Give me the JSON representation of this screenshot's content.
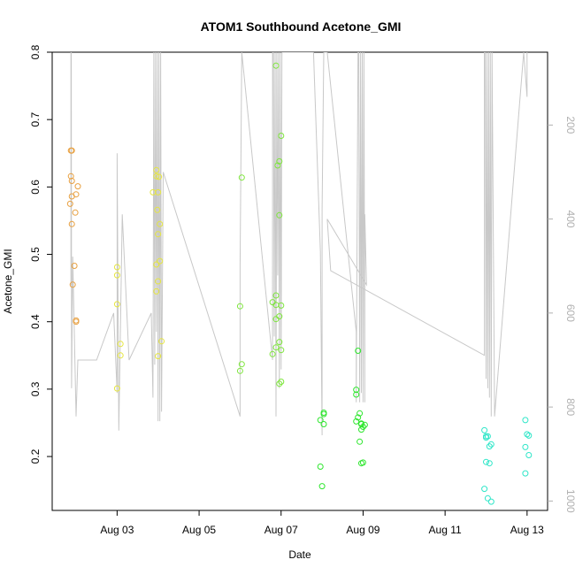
{
  "chart_data": {
    "type": "scatter",
    "title": "ATOM1 Southbound Acetone_GMI",
    "xlabel": "Date",
    "ylabel": "Acetone_GMI",
    "x_range": [
      "2016-08-01T10:00",
      "2016-08-13T12:00"
    ],
    "ylim": [
      0.12,
      0.8
    ],
    "y_ticks": [
      0.2,
      0.3,
      0.4,
      0.5,
      0.6,
      0.7,
      0.8
    ],
    "x_ticks": [
      {
        "date": "2016-08-03",
        "label": "Aug 03"
      },
      {
        "date": "2016-08-05",
        "label": "Aug 05"
      },
      {
        "date": "2016-08-07",
        "label": "Aug 07"
      },
      {
        "date": "2016-08-09",
        "label": "Aug 09"
      },
      {
        "date": "2016-08-11",
        "label": "Aug 11"
      },
      {
        "date": "2016-08-13",
        "label": "Aug 13"
      }
    ],
    "right_axis": {
      "reversed": true,
      "lim": [
        45,
        1020
      ],
      "ticks": [
        200,
        400,
        600,
        800,
        1000
      ],
      "color": "#b0b0b0"
    },
    "grid": false,
    "series": [
      {
        "color": "#e8a040",
        "points": [
          [
            "2016-08-01T21:00",
            0.654
          ],
          [
            "2016-08-01T21:30",
            0.654
          ],
          [
            "2016-08-01T21:00",
            0.616
          ],
          [
            "2016-08-01T21:30",
            0.609
          ],
          [
            "2016-08-02T01:00",
            0.601
          ],
          [
            "2016-08-02T00:00",
            0.589
          ],
          [
            "2016-08-01T21:30",
            0.586
          ],
          [
            "2016-08-01T20:30",
            0.575
          ],
          [
            "2016-08-01T23:30",
            0.562
          ],
          [
            "2016-08-01T21:30",
            0.545
          ],
          [
            "2016-08-01T23:00",
            0.483
          ],
          [
            "2016-08-01T22:00",
            0.455
          ],
          [
            "2016-08-02T00:00",
            0.402
          ],
          [
            "2016-08-02T00:00",
            0.4
          ]
        ]
      },
      {
        "color": "#e6e640",
        "points": [
          [
            "2016-08-03T00:00",
            0.481
          ],
          [
            "2016-08-03T00:00",
            0.469
          ],
          [
            "2016-08-03T00:00",
            0.426
          ],
          [
            "2016-08-03T02:00",
            0.367
          ],
          [
            "2016-08-03T02:00",
            0.35
          ],
          [
            "2016-08-03T00:00",
            0.301
          ],
          [
            "2016-08-03T23:00",
            0.625
          ],
          [
            "2016-08-03T23:00",
            0.616
          ],
          [
            "2016-08-04T00:30",
            0.615
          ],
          [
            "2016-08-03T21:00",
            0.592
          ],
          [
            "2016-08-04T00:00",
            0.592
          ],
          [
            "2016-08-03T23:30",
            0.566
          ],
          [
            "2016-08-04T01:00",
            0.545
          ],
          [
            "2016-08-04T00:00",
            0.53
          ],
          [
            "2016-08-04T01:00",
            0.49
          ],
          [
            "2016-08-03T23:00",
            0.485
          ],
          [
            "2016-08-04T00:00",
            0.46
          ],
          [
            "2016-08-03T23:00",
            0.445
          ],
          [
            "2016-08-04T02:00",
            0.371
          ],
          [
            "2016-08-04T00:00",
            0.349
          ]
        ]
      },
      {
        "color": "#7ee63c",
        "points": [
          [
            "2016-08-06T01:00",
            0.614
          ],
          [
            "2016-08-06T00:00",
            0.423
          ],
          [
            "2016-08-06T01:00",
            0.337
          ],
          [
            "2016-08-06T00:00",
            0.327
          ],
          [
            "2016-08-06T21:00",
            0.78
          ],
          [
            "2016-08-07T00:00",
            0.676
          ],
          [
            "2016-08-06T23:00",
            0.638
          ],
          [
            "2016-08-06T22:00",
            0.632
          ],
          [
            "2016-08-06T23:00",
            0.558
          ],
          [
            "2016-08-06T21:00",
            0.439
          ],
          [
            "2016-08-06T19:00",
            0.429
          ],
          [
            "2016-08-06T21:00",
            0.425
          ],
          [
            "2016-08-07T00:00",
            0.424
          ],
          [
            "2016-08-06T23:00",
            0.408
          ],
          [
            "2016-08-06T21:00",
            0.404
          ],
          [
            "2016-08-06T23:00",
            0.37
          ],
          [
            "2016-08-06T21:00",
            0.362
          ],
          [
            "2016-08-07T00:00",
            0.358
          ],
          [
            "2016-08-06T19:00",
            0.352
          ],
          [
            "2016-08-07T00:00",
            0.311
          ],
          [
            "2016-08-06T23:00",
            0.308
          ]
        ]
      },
      {
        "color": "#2ee62e",
        "points": [
          [
            "2016-08-08T01:00",
            0.265
          ],
          [
            "2016-08-08T01:00",
            0.263
          ],
          [
            "2016-08-07T23:00",
            0.254
          ],
          [
            "2016-08-08T01:00",
            0.248
          ],
          [
            "2016-08-07T23:00",
            0.185
          ],
          [
            "2016-08-08T00:00",
            0.156
          ],
          [
            "2016-08-08T21:00",
            0.357
          ],
          [
            "2016-08-08T20:00",
            0.299
          ],
          [
            "2016-08-08T20:00",
            0.292
          ],
          [
            "2016-08-08T22:00",
            0.264
          ],
          [
            "2016-08-08T21:00",
            0.258
          ],
          [
            "2016-08-08T20:00",
            0.252
          ],
          [
            "2016-08-08T23:00",
            0.249
          ],
          [
            "2016-08-08T23:00",
            0.248
          ],
          [
            "2016-08-09T01:00",
            0.247
          ],
          [
            "2016-08-09T00:00",
            0.244
          ],
          [
            "2016-08-08T23:00",
            0.24
          ],
          [
            "2016-08-08T22:00",
            0.222
          ],
          [
            "2016-08-09T00:00",
            0.191
          ],
          [
            "2016-08-08T23:00",
            0.19
          ]
        ]
      },
      {
        "color": "#2ee6c8",
        "points": [
          [
            "2016-08-11T23:00",
            0.239
          ],
          [
            "2016-08-12T00:00",
            0.23
          ],
          [
            "2016-08-12T01:00",
            0.23
          ],
          [
            "2016-08-12T00:00",
            0.228
          ],
          [
            "2016-08-12T03:00",
            0.218
          ],
          [
            "2016-08-12T02:00",
            0.215
          ],
          [
            "2016-08-12T00:00",
            0.192
          ],
          [
            "2016-08-12T02:00",
            0.19
          ],
          [
            "2016-08-11T23:00",
            0.152
          ],
          [
            "2016-08-12T01:00",
            0.138
          ],
          [
            "2016-08-12T03:00",
            0.133
          ],
          [
            "2016-08-12T23:00",
            0.254
          ],
          [
            "2016-08-13T00:00",
            0.233
          ],
          [
            "2016-08-13T01:00",
            0.231
          ],
          [
            "2016-08-12T23:00",
            0.214
          ],
          [
            "2016-08-13T01:00",
            0.202
          ],
          [
            "2016-08-12T23:00",
            0.175
          ]
        ]
      }
    ],
    "altitude_line": {
      "color": "#c8c8c8",
      "points": [
        [
          "2016-08-01T21:00",
          45
        ],
        [
          "2016-08-01T21:00",
          540
        ],
        [
          "2016-08-01T21:10",
          45
        ],
        [
          "2016-08-01T21:20",
          760
        ],
        [
          "2016-08-01T22:00",
          480
        ],
        [
          "2016-08-02T00:00",
          820
        ],
        [
          "2016-08-02T01:00",
          700
        ],
        [
          "2016-08-02T12:00",
          700
        ],
        [
          "2016-08-02T22:00",
          600
        ],
        [
          "2016-08-03T00:00",
          770
        ],
        [
          "2016-08-03T00:00",
          260
        ],
        [
          "2016-08-03T01:00",
          850
        ],
        [
          "2016-08-03T03:00",
          390
        ],
        [
          "2016-08-03T07:00",
          700
        ],
        [
          "2016-08-03T20:00",
          600
        ],
        [
          "2016-08-03T21:00",
          780
        ],
        [
          "2016-08-03T21:30",
          45
        ],
        [
          "2016-08-03T22:00",
          710
        ],
        [
          "2016-08-03T22:30",
          45
        ],
        [
          "2016-08-03T23:00",
          640
        ],
        [
          "2016-08-03T23:30",
          45
        ],
        [
          "2016-08-04T00:00",
          830
        ],
        [
          "2016-08-04T00:30",
          45
        ],
        [
          "2016-08-04T01:00",
          830
        ],
        [
          "2016-08-04T01:30",
          45
        ],
        [
          "2016-08-04T02:00",
          810
        ],
        [
          "2016-08-04T03:00",
          300
        ],
        [
          "2016-08-06T00:00",
          820
        ],
        [
          "2016-08-06T00:00",
          500
        ],
        [
          "2016-08-06T01:00",
          45
        ],
        [
          "2016-08-06T19:00",
          700
        ],
        [
          "2016-08-06T19:00",
          45
        ],
        [
          "2016-08-06T19:30",
          45
        ],
        [
          "2016-08-06T20:00",
          650
        ],
        [
          "2016-08-06T20:30",
          45
        ],
        [
          "2016-08-06T21:00",
          820
        ],
        [
          "2016-08-06T21:30",
          45
        ],
        [
          "2016-08-06T22:00",
          520
        ],
        [
          "2016-08-06T22:30",
          45
        ],
        [
          "2016-08-06T23:00",
          760
        ],
        [
          "2016-08-06T23:30",
          45
        ],
        [
          "2016-08-07T00:00",
          720
        ],
        [
          "2016-08-07T00:30",
          45
        ],
        [
          "2016-08-07T01:00",
          45
        ],
        [
          "2016-08-07T19:00",
          45
        ],
        [
          "2016-08-07T23:00",
          470
        ],
        [
          "2016-08-08T00:00",
          860
        ],
        [
          "2016-08-08T00:00",
          380
        ],
        [
          "2016-08-08T01:00",
          45
        ],
        [
          "2016-08-08T03:00",
          45
        ],
        [
          "2016-08-08T20:00",
          640
        ],
        [
          "2016-08-08T20:00",
          790
        ],
        [
          "2016-08-08T21:00",
          45
        ],
        [
          "2016-08-08T21:30",
          45
        ],
        [
          "2016-08-08T22:00",
          790
        ],
        [
          "2016-08-08T22:30",
          45
        ],
        [
          "2016-08-08T23:00",
          770
        ],
        [
          "2016-08-08T23:30",
          45
        ],
        [
          "2016-08-09T00:00",
          790
        ],
        [
          "2016-08-09T00:30",
          45
        ],
        [
          "2016-08-09T01:00",
          790
        ],
        [
          "2016-08-09T01:00",
          390
        ],
        [
          "2016-08-09T02:00",
          540
        ],
        [
          "2016-08-08T03:00",
          400
        ],
        [
          "2016-08-08T05:00",
          510
        ],
        [
          "2016-08-11T23:00",
          690
        ],
        [
          "2016-08-11T23:00",
          45
        ],
        [
          "2016-08-11T23:30",
          45
        ],
        [
          "2016-08-12T00:00",
          740
        ],
        [
          "2016-08-12T00:30",
          45
        ],
        [
          "2016-08-12T01:00",
          760
        ],
        [
          "2016-08-12T01:30",
          45
        ],
        [
          "2016-08-12T02:00",
          780
        ],
        [
          "2016-08-12T02:30",
          45
        ],
        [
          "2016-08-12T03:00",
          820
        ],
        [
          "2016-08-12T03:30",
          45
        ],
        [
          "2016-08-12T05:00",
          820
        ],
        [
          "2016-08-12T22:00",
          45
        ],
        [
          "2016-08-13T00:00",
          140
        ],
        [
          "2016-08-13T00:00",
          45
        ]
      ]
    }
  }
}
